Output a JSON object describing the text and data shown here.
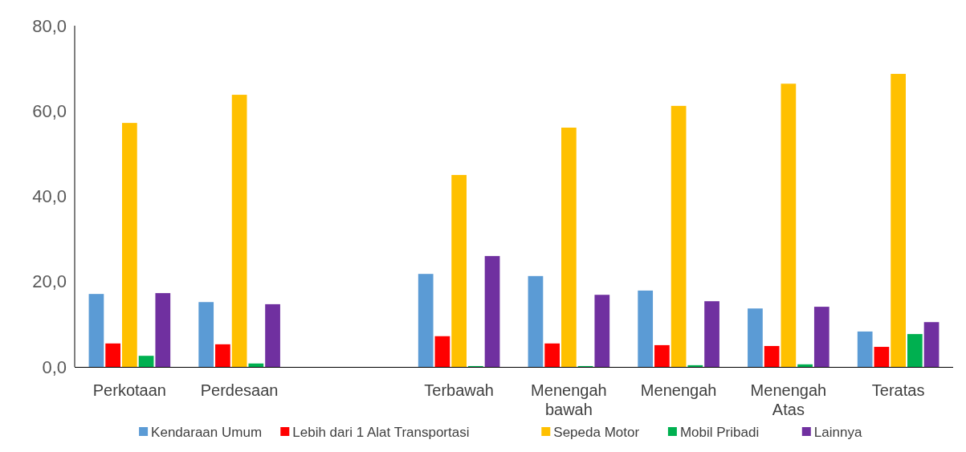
{
  "chart_data": {
    "type": "bar",
    "categories": [
      "Perkotaan",
      "Perdesaan",
      null,
      "Terbawah",
      "Menengah bawah",
      "Menengah",
      "Menengah Atas",
      "Teratas"
    ],
    "series": [
      {
        "name": "Kendaraan Umum",
        "color": "#5b9bd5",
        "values": [
          17.1,
          15.2,
          null,
          21.8,
          21.3,
          17.9,
          13.7,
          8.3
        ]
      },
      {
        "name": "Lebih dari 1 Alat Transportasi",
        "color": "#ff0000",
        "values": [
          5.5,
          5.3,
          null,
          7.2,
          5.5,
          5.1,
          4.9,
          4.7
        ]
      },
      {
        "name": "Sepeda Motor",
        "color": "#ffc000",
        "values": [
          57.2,
          63.8,
          null,
          45.0,
          56.1,
          61.2,
          66.4,
          68.7
        ]
      },
      {
        "name": "Mobil Pribadi",
        "color": "#00b050",
        "values": [
          2.6,
          0.8,
          null,
          0.2,
          0.2,
          0.4,
          0.6,
          7.7
        ]
      },
      {
        "name": "Lainnya",
        "color": "#7030a0",
        "values": [
          17.3,
          14.7,
          null,
          26.0,
          16.9,
          15.4,
          14.1,
          10.5
        ]
      }
    ],
    "ylim": [
      0,
      80
    ],
    "yticks": [
      {
        "value": 0,
        "label": "0,0"
      },
      {
        "value": 20,
        "label": "20,0"
      },
      {
        "value": 40,
        "label": "40,0"
      },
      {
        "value": 60,
        "label": "60,0"
      },
      {
        "value": 80,
        "label": "80,0"
      }
    ],
    "grid": false,
    "legend": "bottom"
  }
}
